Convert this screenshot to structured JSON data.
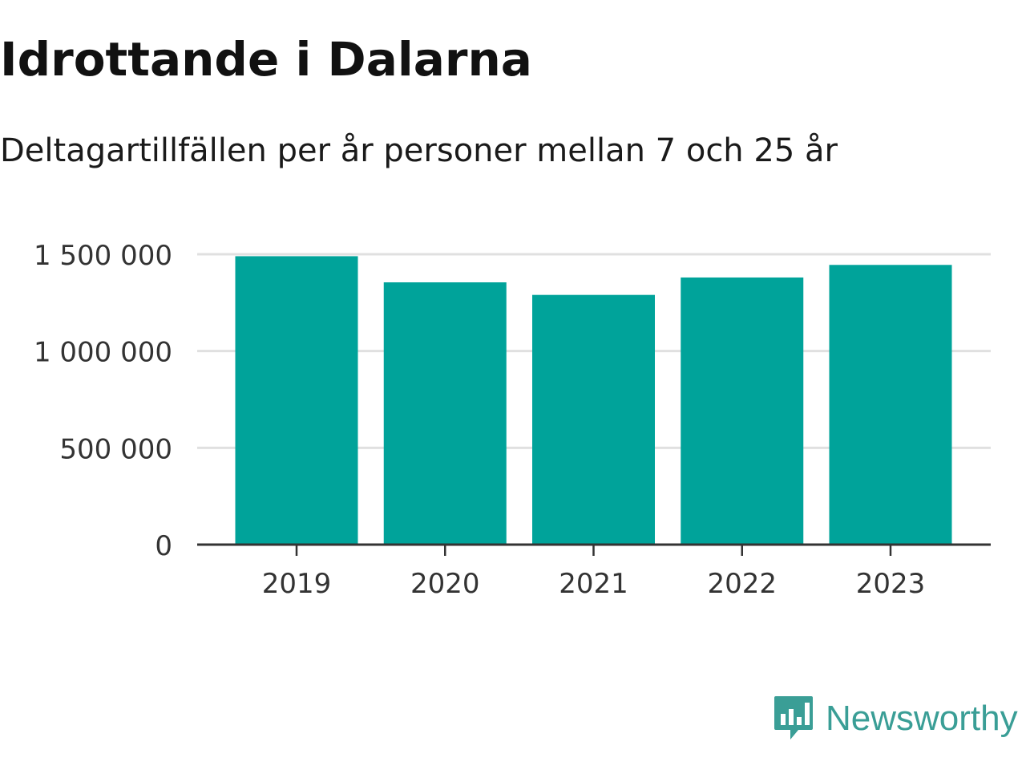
{
  "header": {
    "title": "Idrottande i Dalarna",
    "subtitle": "Deltagartillfällen per år personer mellan 7 och 25 år"
  },
  "chart_data": {
    "type": "bar",
    "title": "Idrottande i Dalarna",
    "subtitle": "Deltagartillfällen per år personer mellan 7 och 25 år",
    "xlabel": "",
    "ylabel": "",
    "categories": [
      "2019",
      "2020",
      "2021",
      "2022",
      "2023"
    ],
    "values": [
      1490000,
      1355000,
      1290000,
      1380000,
      1445000
    ],
    "ylim": [
      0,
      1500000
    ],
    "yticks": [
      0,
      500000,
      1000000,
      1500000
    ],
    "ytick_labels": [
      "0",
      "500 000",
      "1 000 000",
      "1 500 000"
    ],
    "grid": true,
    "legend": "none",
    "colors": {
      "bar": "#00a39a",
      "grid": "#e0e0e0",
      "axis": "#333333",
      "tick_text": "#333333"
    }
  },
  "brand": {
    "name": "Newsworthy",
    "logo_icon": "bar-chart-speech-bubble-icon",
    "color": "#3a9e96"
  }
}
